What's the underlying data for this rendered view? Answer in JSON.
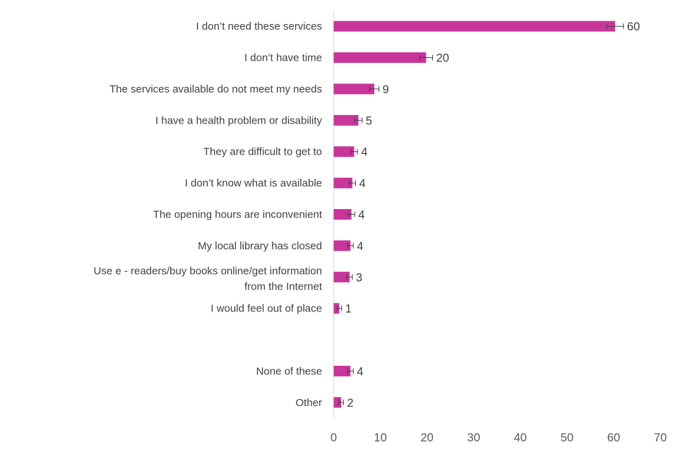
{
  "chart_data": {
    "type": "bar",
    "orientation": "horizontal",
    "categories": [
      "I don’t need these services",
      "I don’t have time",
      "The services available do not meet my needs",
      "I have a health problem or disability",
      "They are difficult to get to",
      "I don’t know what is available",
      "The opening hours are inconvenient",
      "My local library has closed",
      "Use e - readers/buy books online/get information from the Internet",
      "I would feel out of place",
      "",
      "None of these",
      "Other"
    ],
    "values": [
      60.3,
      19.8,
      8.7,
      5.3,
      4.4,
      4.0,
      3.8,
      3.6,
      3.4,
      1.2,
      null,
      3.6,
      1.6
    ],
    "data_labels": [
      "60",
      "20",
      "9",
      "5",
      "4",
      "4",
      "4",
      "4",
      "3",
      "1",
      "",
      "4",
      "2"
    ],
    "error_bars": [
      1.8,
      1.4,
      1.0,
      0.8,
      0.7,
      0.7,
      0.7,
      0.6,
      0.6,
      0.5,
      null,
      0.6,
      0.5
    ],
    "xlim": [
      0,
      70
    ],
    "xticks": [
      0,
      10,
      20,
      30,
      40,
      50,
      60,
      70
    ],
    "title": "",
    "xlabel": "",
    "ylabel": "",
    "grid": false,
    "legend": "none",
    "bar_color": "#C8359B",
    "error_bar_color": "#404040"
  }
}
